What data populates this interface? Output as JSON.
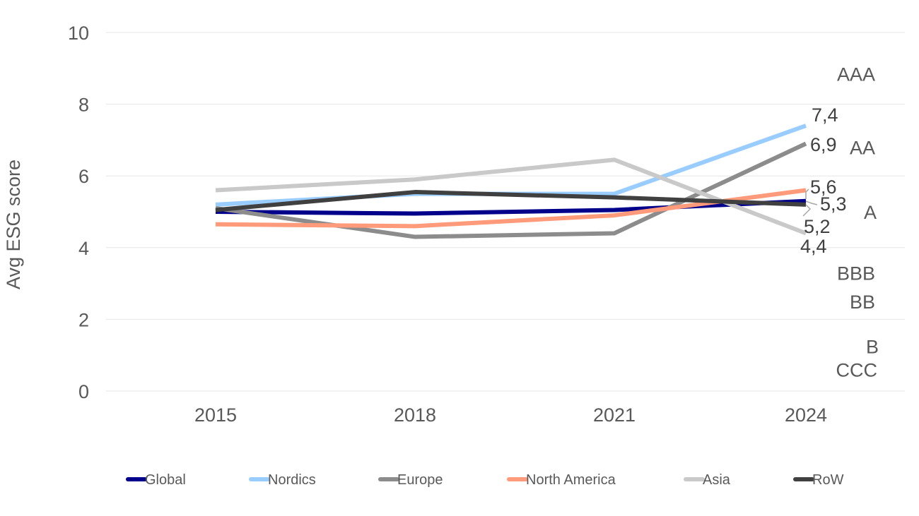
{
  "chart_data": {
    "type": "line",
    "ylabel": "Avg ESG score",
    "xlabel": "",
    "ylim": [
      0,
      10
    ],
    "yticks": [
      "0",
      "2",
      "4",
      "6",
      "8",
      "10"
    ],
    "categories": [
      "2015",
      "2018",
      "2021",
      "2024"
    ],
    "grid": true,
    "legend_position": "bottom",
    "series": [
      {
        "name": "Global",
        "color": "#00008b",
        "values": [
          5.0,
          4.95,
          5.05,
          5.3
        ],
        "end_label": "5,3"
      },
      {
        "name": "Nordics",
        "color": "#99ccff",
        "values": [
          5.2,
          5.5,
          5.5,
          7.4
        ],
        "end_label": "7,4"
      },
      {
        "name": "Europe",
        "color": "#8c8c8c",
        "values": [
          5.1,
          4.3,
          4.4,
          6.9
        ],
        "end_label": "6,9"
      },
      {
        "name": "North America",
        "color": "#ff9a7a",
        "values": [
          4.65,
          4.6,
          4.9,
          5.6
        ],
        "end_label": "5,6"
      },
      {
        "name": "Asia",
        "color": "#c9c9c9",
        "values": [
          5.6,
          5.9,
          6.45,
          4.4
        ],
        "end_label": "4,4"
      },
      {
        "name": "RoW",
        "color": "#404040",
        "values": [
          5.05,
          5.55,
          5.4,
          5.2
        ],
        "end_label": "5,2"
      }
    ],
    "ratings": [
      {
        "label": "AAA",
        "y": 8.85
      },
      {
        "label": "AA",
        "y": 6.8
      },
      {
        "label": "A",
        "y": 5.0
      },
      {
        "label": "BBB",
        "y": 3.3
      },
      {
        "label": "BB",
        "y": 2.5
      },
      {
        "label": "B",
        "y": 1.25
      },
      {
        "label": "CCC",
        "y": 0.6
      }
    ]
  }
}
